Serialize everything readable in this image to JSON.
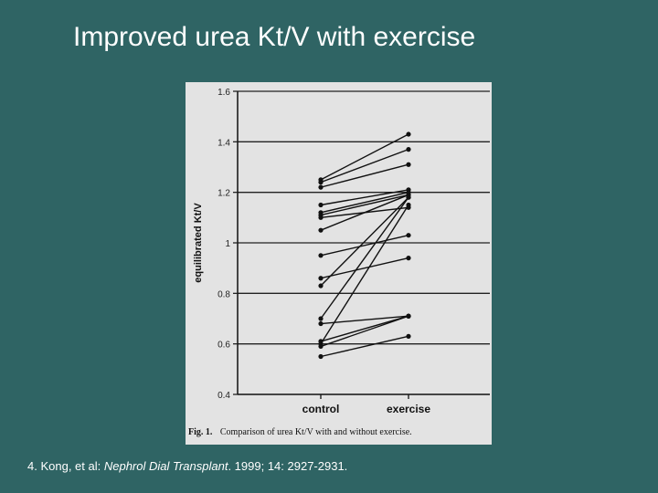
{
  "slide": {
    "title": "Improved urea Kt/V with exercise",
    "citation_authors": "4. Kong, et al:  ",
    "citation_journal": "Nephrol Dial Transplant",
    "citation_details": ". 1999; 14: 2927-2931."
  },
  "chart_data": {
    "type": "line",
    "title": "",
    "caption_label": "Fig. 1.",
    "caption_text": "Comparison of urea Kt/V with and without exercise.",
    "xlabel": "",
    "ylabel": "equilibrated  Kt/V",
    "categories": [
      "control",
      "exercise"
    ],
    "ylim": [
      0.4,
      1.6
    ],
    "yticks": [
      0.4,
      0.6,
      0.8,
      1,
      1.2,
      1.4,
      1.6
    ],
    "ytick_labels": [
      "0.4",
      "0.6",
      "0.8",
      "1",
      "1.2",
      "1.4",
      "1.6"
    ],
    "grid": true,
    "legend": "none",
    "colors": {
      "line": "#111111",
      "grid": "#222222",
      "background": "#e3e3e3"
    },
    "series": [
      {
        "values": [
          1.25,
          1.43
        ]
      },
      {
        "values": [
          1.24,
          1.37
        ]
      },
      {
        "values": [
          1.22,
          1.31
        ]
      },
      {
        "values": [
          1.15,
          1.21
        ]
      },
      {
        "values": [
          1.12,
          1.2
        ]
      },
      {
        "values": [
          1.11,
          1.19
        ]
      },
      {
        "values": [
          1.1,
          1.14
        ]
      },
      {
        "values": [
          1.05,
          1.19
        ]
      },
      {
        "values": [
          0.95,
          1.03
        ]
      },
      {
        "values": [
          0.86,
          0.94
        ]
      },
      {
        "values": [
          0.83,
          1.18
        ]
      },
      {
        "values": [
          0.7,
          1.18
        ]
      },
      {
        "values": [
          0.68,
          0.71
        ]
      },
      {
        "values": [
          0.61,
          0.71
        ]
      },
      {
        "values": [
          0.6,
          1.15
        ]
      },
      {
        "values": [
          0.59,
          0.71
        ]
      },
      {
        "values": [
          0.55,
          0.63
        ]
      }
    ]
  }
}
